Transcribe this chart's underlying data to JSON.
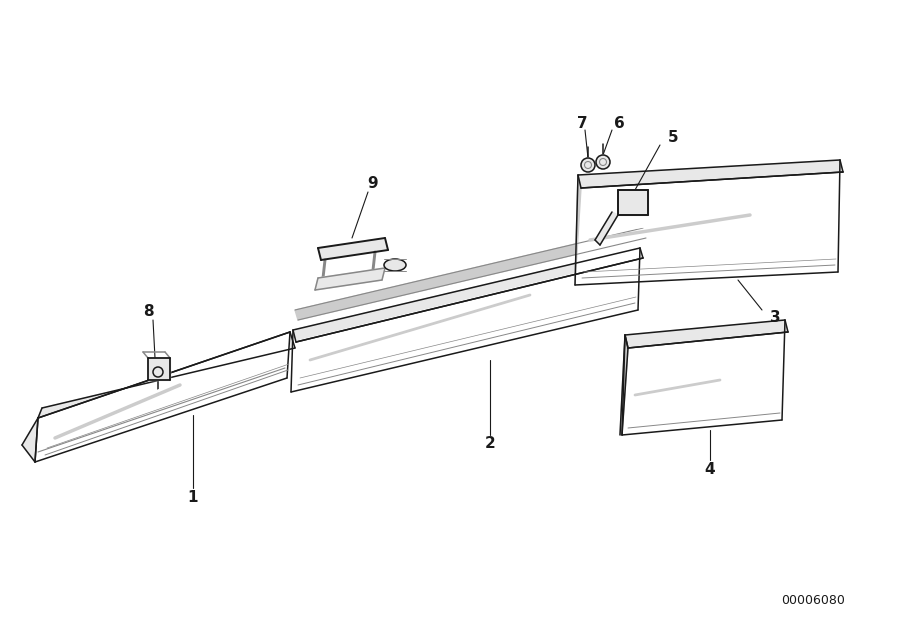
{
  "bg_color": "#ffffff",
  "line_color": "#1a1a1a",
  "shadow_color": "#aaaaaa",
  "diagram_id": "00006080",
  "lw": 1.1
}
